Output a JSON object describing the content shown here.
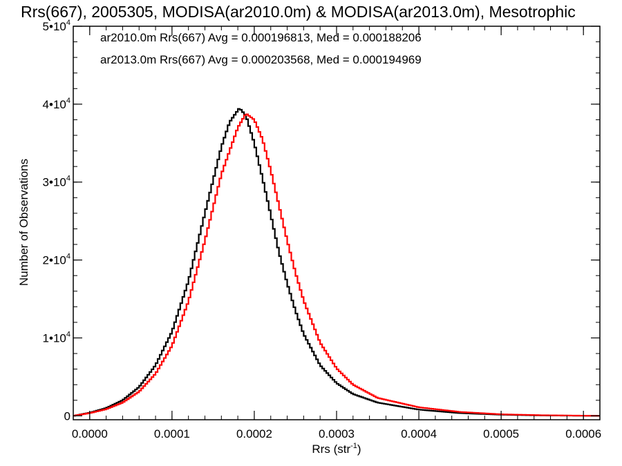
{
  "chart_data": {
    "type": "line",
    "title": "Rrs(667), 2005305, MODISA(ar2010.0m) & MODISA(ar2013.0m), Mesotrophic",
    "xlabel_main": "Rrs (str",
    "xlabel_sup": "-1",
    "xlabel_close": ")",
    "ylabel": "Number of Observations",
    "xlim": [
      -2e-05,
      0.00062
    ],
    "ylim": [
      -500,
      50000
    ],
    "x_ticks": [
      0.0,
      0.0001,
      0.0002,
      0.0003,
      0.0004,
      0.0005,
      0.0006
    ],
    "x_tick_labels": [
      "0.0000",
      "0.0001",
      "0.0002",
      "0.0003",
      "0.0004",
      "0.0005",
      "0.0006"
    ],
    "y_ticks": [
      {
        "value": 0,
        "base": "0",
        "sup": ""
      },
      {
        "value": 10000,
        "base": "1•10",
        "sup": "4"
      },
      {
        "value": 20000,
        "base": "2•10",
        "sup": "4"
      },
      {
        "value": 30000,
        "base": "3•10",
        "sup": "4"
      },
      {
        "value": 40000,
        "base": "4•10",
        "sup": "4"
      },
      {
        "value": 50000,
        "base": "5•10",
        "sup": "4"
      }
    ],
    "annotations": [
      {
        "text": "ar2010.0m Rrs(667) Avg = 0.000196813, Med = 0.000188206",
        "color": "#000000"
      },
      {
        "text": "ar2013.0m Rrs(667) Avg = 0.000203568, Med = 0.000194969",
        "color": "#ff0000"
      }
    ],
    "series": [
      {
        "color": "#000000",
        "points": [
          [
            -2e-05,
            0
          ],
          [
            0.0,
            400
          ],
          [
            2e-05,
            1000
          ],
          [
            4e-05,
            2000
          ],
          [
            6e-05,
            3700
          ],
          [
            8e-05,
            6500
          ],
          [
            0.0001,
            10800
          ],
          [
            0.00012,
            17300
          ],
          [
            0.00014,
            26000
          ],
          [
            0.00016,
            34500
          ],
          [
            0.00017,
            37700
          ],
          [
            0.000182,
            39500
          ],
          [
            0.00019,
            38500
          ],
          [
            0.0002,
            35000
          ],
          [
            0.00021,
            30500
          ],
          [
            0.00022,
            25800
          ],
          [
            0.00023,
            21000
          ],
          [
            0.00024,
            17000
          ],
          [
            0.00025,
            13500
          ],
          [
            0.00026,
            10500
          ],
          [
            0.00028,
            6500
          ],
          [
            0.0003,
            4200
          ],
          [
            0.00032,
            2800
          ],
          [
            0.00035,
            1700
          ],
          [
            0.0004,
            800
          ],
          [
            0.00045,
            350
          ],
          [
            0.0005,
            150
          ],
          [
            0.00055,
            50
          ],
          [
            0.00062,
            0
          ]
        ]
      },
      {
        "color": "#ff0000",
        "points": [
          [
            -2e-05,
            0
          ],
          [
            0.0,
            350
          ],
          [
            2e-05,
            850
          ],
          [
            4e-05,
            1700
          ],
          [
            6e-05,
            3100
          ],
          [
            8e-05,
            5400
          ],
          [
            0.0001,
            9000
          ],
          [
            0.00012,
            14700
          ],
          [
            0.00014,
            22500
          ],
          [
            0.00016,
            31000
          ],
          [
            0.00018,
            37000
          ],
          [
            0.00019,
            38800
          ],
          [
            0.0002,
            38000
          ],
          [
            0.00021,
            35500
          ],
          [
            0.00022,
            31500
          ],
          [
            0.00023,
            27000
          ],
          [
            0.00024,
            22500
          ],
          [
            0.00025,
            18400
          ],
          [
            0.00026,
            14800
          ],
          [
            0.00028,
            9400
          ],
          [
            0.0003,
            6100
          ],
          [
            0.00032,
            4000
          ],
          [
            0.00035,
            2300
          ],
          [
            0.0004,
            1100
          ],
          [
            0.00045,
            500
          ],
          [
            0.0005,
            200
          ],
          [
            0.00055,
            80
          ],
          [
            0.00062,
            0
          ]
        ]
      }
    ]
  }
}
